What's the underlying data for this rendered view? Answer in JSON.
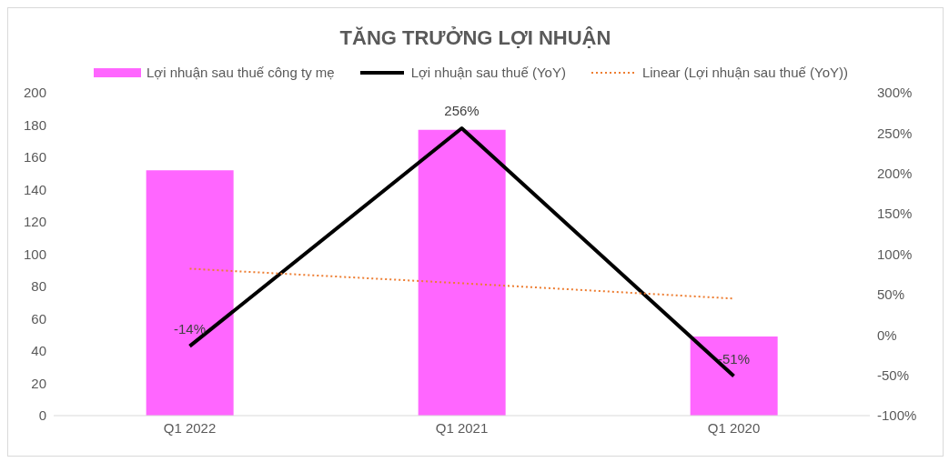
{
  "chart_data": {
    "type": "bar",
    "title": "TĂNG TRƯỞNG LỢI NHUẬN",
    "categories": [
      "Q1 2022",
      "Q1 2021",
      "Q1 2020"
    ],
    "series": [
      {
        "name": "Lợi nhuận sau thuế công ty mẹ",
        "color": "#ff66ff",
        "values": [
          152,
          177,
          49
        ]
      },
      {
        "name": "Lợi nhuận sau thuế (YoY)",
        "type": "line",
        "axis": "y2",
        "color": "#000000",
        "values": [
          -14,
          256,
          -51
        ],
        "value_labels": [
          "-14%",
          "256%",
          "-51%"
        ]
      },
      {
        "name": "Linear (Lợi nhuận sau thuế (YoY))",
        "type": "line",
        "axis": "y2",
        "color": "#ed7d31",
        "line_style": "dotted",
        "values": [
          82,
          64,
          45
        ]
      }
    ],
    "ylim": [
      0,
      200
    ],
    "yticks": [
      0,
      20,
      40,
      60,
      80,
      100,
      120,
      140,
      160,
      180,
      200
    ],
    "y2lim": [
      -100,
      300
    ],
    "y2ticks": [
      {
        "value": -100,
        "label": "-100%"
      },
      {
        "value": -50,
        "label": "-50%"
      },
      {
        "value": 0,
        "label": "0%"
      },
      {
        "value": 50,
        "label": "50%"
      },
      {
        "value": 100,
        "label": "100%"
      },
      {
        "value": 150,
        "label": "150%"
      },
      {
        "value": 200,
        "label": "200%"
      },
      {
        "value": 250,
        "label": "250%"
      },
      {
        "value": 300,
        "label": "300%"
      }
    ],
    "grid": false,
    "legend": "top",
    "marker": "none"
  }
}
